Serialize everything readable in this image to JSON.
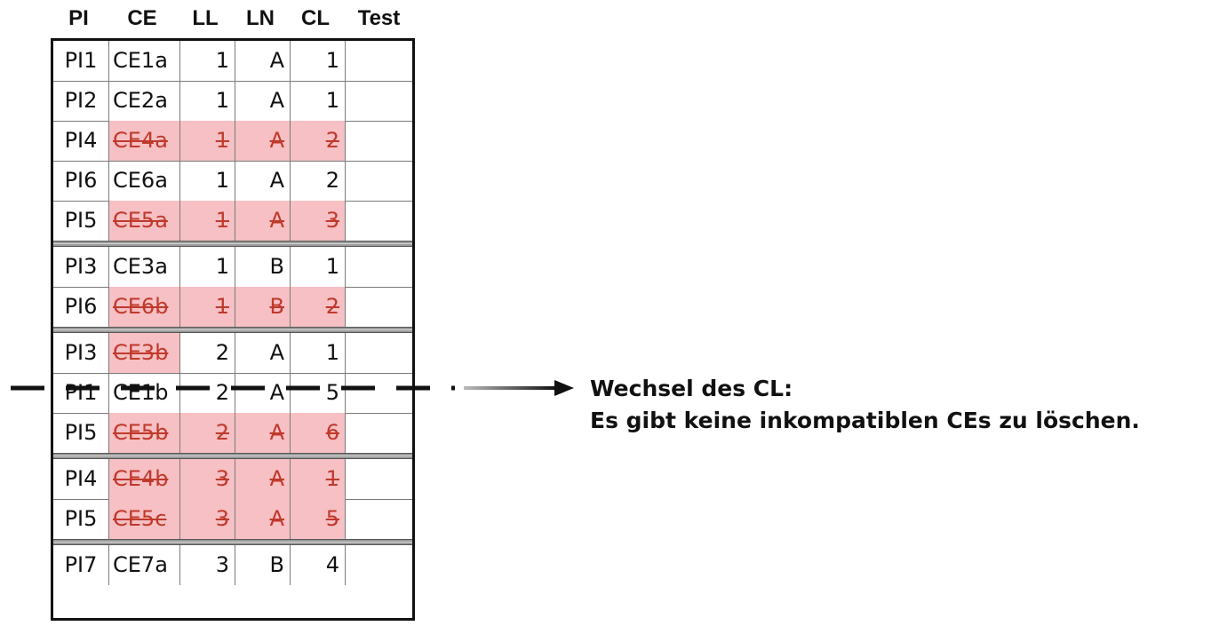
{
  "table": {
    "headers": [
      "PI",
      "CE",
      "LL",
      "LN",
      "CL",
      "Test"
    ],
    "rows": [
      {
        "pi": "PI1",
        "ce": "CE1a",
        "ll": "1",
        "ln": "A",
        "cl": "1",
        "test": "",
        "struck": false
      },
      {
        "pi": "PI2",
        "ce": "CE2a",
        "ll": "1",
        "ln": "A",
        "cl": "1",
        "test": "",
        "struck": false
      },
      {
        "pi": "PI4",
        "ce": "CE4a",
        "ll": "1",
        "ln": "A",
        "cl": "2",
        "test": "",
        "struck": true
      },
      {
        "pi": "PI6",
        "ce": "CE6a",
        "ll": "1",
        "ln": "A",
        "cl": "2",
        "test": "",
        "struck": false
      },
      {
        "pi": "PI5",
        "ce": "CE5a",
        "ll": "1",
        "ln": "A",
        "cl": "3",
        "test": "",
        "struck": true
      },
      {
        "pi": "PI3",
        "ce": "CE3a",
        "ll": "1",
        "ln": "B",
        "cl": "1",
        "test": "",
        "struck": false
      },
      {
        "pi": "PI6",
        "ce": "CE6b",
        "ll": "1",
        "ln": "B",
        "cl": "2",
        "test": "",
        "struck": true
      },
      {
        "pi": "PI3",
        "ce": "CE3b",
        "ll": "2",
        "ln": "A",
        "cl": "1",
        "test": "",
        "struck": "ce-only"
      },
      {
        "pi": "PI1",
        "ce": "CE1b",
        "ll": "2",
        "ln": "A",
        "cl": "5",
        "test": "",
        "struck": false
      },
      {
        "pi": "PI5",
        "ce": "CE5b",
        "ll": "2",
        "ln": "A",
        "cl": "6",
        "test": "",
        "struck": true
      },
      {
        "pi": "PI4",
        "ce": "CE4b",
        "ll": "3",
        "ln": "A",
        "cl": "1",
        "test": "",
        "struck": true
      },
      {
        "pi": "PI5",
        "ce": "CE5c",
        "ll": "3",
        "ln": "A",
        "cl": "5",
        "test": "",
        "struck": true
      },
      {
        "pi": "PI7",
        "ce": "CE7a",
        "ll": "3",
        "ln": "B",
        "cl": "4",
        "test": "",
        "struck": false
      }
    ]
  },
  "annotation": {
    "line1": "Wechsel des CL:",
    "line2": "Es gibt keine inkompatiblen CEs zu löschen."
  },
  "colors": {
    "strike_bg": "#f6c0c4",
    "strike_text": "#c0392b",
    "text": "#111111"
  }
}
